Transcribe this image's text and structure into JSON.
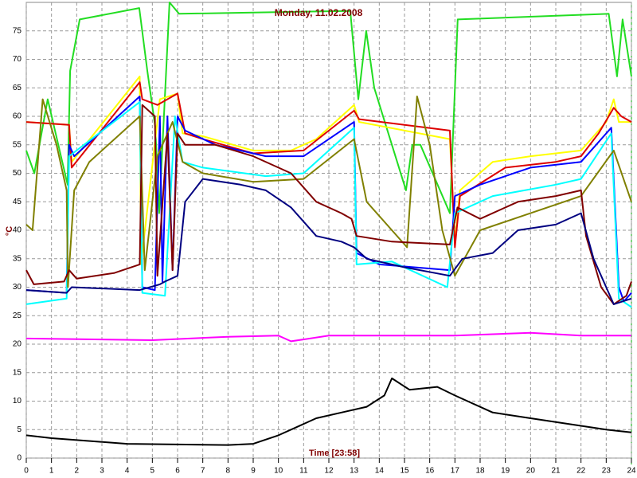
{
  "chart_data": {
    "type": "line",
    "title": "Monday, 11.02.2008",
    "x_label": "Time [23:58]",
    "y_label": "°C",
    "xlim": [
      0,
      24
    ],
    "xticks": [
      0,
      1,
      2,
      3,
      4,
      5,
      6,
      7,
      8,
      9,
      10,
      11,
      12,
      13,
      14,
      15,
      16,
      17,
      18,
      19,
      20,
      21,
      22,
      23,
      24
    ],
    "ylim": [
      0,
      80
    ],
    "yticks": [
      0,
      5,
      10,
      15,
      20,
      25,
      30,
      35,
      40,
      45,
      50,
      55,
      60,
      65,
      70,
      75
    ],
    "grid": true,
    "series": [
      {
        "color": "#22dd22",
        "x": [
          0,
          0.32,
          0.85,
          1.64,
          1.74,
          2.12,
          4.48,
          4.8,
          5.12,
          5.27,
          5.68,
          6.06,
          12.85,
          13.17,
          13.48,
          13.8,
          15.06,
          15.31,
          15.63,
          16.8,
          17.11,
          23.1,
          23.43,
          23.65,
          24
        ],
        "values": [
          54,
          50,
          63,
          48,
          68,
          77,
          79,
          68,
          58,
          43,
          80,
          78,
          78.5,
          63,
          75,
          65,
          47,
          55,
          55,
          43,
          77,
          78,
          67,
          77,
          67
        ]
      },
      {
        "color": "#ffff00",
        "x": [
          0,
          1.7,
          1.8,
          4.5,
          4.55,
          5.3,
          6,
          6.2,
          7,
          9,
          10.5,
          11.5,
          13,
          13.2,
          16.8,
          17,
          17.2,
          18.5,
          20,
          22,
          23,
          23.3,
          23.5,
          24
        ],
        "values": [
          59,
          58.5,
          52,
          67,
          34,
          63,
          64,
          57,
          56.5,
          54,
          54,
          56,
          62,
          59,
          56,
          38,
          47,
          52,
          53,
          54,
          59,
          63,
          59,
          59
        ]
      },
      {
        "color": "#dd0000",
        "x": [
          0,
          1.7,
          1.8,
          4.5,
          4.6,
          5.2,
          6,
          6.3,
          7,
          9,
          11,
          13,
          13.2,
          16.8,
          17,
          17.2,
          19,
          21,
          22,
          22.7,
          23.3,
          23.6,
          24
        ],
        "values": [
          59,
          58.5,
          51,
          66,
          63,
          62,
          64,
          57,
          56,
          53.5,
          54,
          61,
          59.5,
          57.5,
          37,
          46,
          51,
          52,
          53,
          57,
          61.5,
          60,
          59
        ]
      },
      {
        "color": "#0000ff",
        "x": [
          0,
          1.6,
          1.7,
          1.9,
          4.5,
          4.6,
          5.1,
          5.3,
          5.4,
          5.6,
          5.8,
          6,
          6.3,
          7.5,
          9.5,
          11,
          13,
          13.1,
          14,
          16.8,
          17,
          18,
          20,
          22,
          23.2,
          23.5,
          23.7,
          24
        ],
        "values": [
          29.5,
          29,
          55,
          53,
          63.5,
          30,
          29.5,
          60,
          31,
          60,
          33,
          60,
          57.5,
          55,
          53,
          53,
          59,
          36,
          34,
          33,
          46,
          48,
          51,
          52,
          58,
          30,
          27.5,
          29
        ]
      },
      {
        "color": "#00ffff",
        "x": [
          0,
          1.6,
          1.7,
          4.5,
          4.6,
          5.5,
          5.9,
          6.2,
          7,
          9.5,
          11,
          13,
          13.1,
          14.5,
          16.7,
          17,
          18.5,
          21,
          22,
          23.2,
          23.5,
          24
        ],
        "values": [
          27,
          28,
          53,
          62.5,
          29,
          28.5,
          60,
          52,
          51,
          49.5,
          50,
          58,
          34,
          34.5,
          30,
          43,
          46,
          48,
          49,
          57,
          28,
          26.5
        ]
      },
      {
        "color": "#808000",
        "x": [
          0,
          0.25,
          0.65,
          1.2,
          1.6,
          1.65,
          1.9,
          2.5,
          4.5,
          4.7,
          5.2,
          5.8,
          6.2,
          7,
          9,
          11,
          13,
          13.5,
          14.5,
          15.1,
          15.5,
          16,
          16.5,
          17,
          18,
          20,
          22,
          23.3,
          24
        ],
        "values": [
          41,
          40,
          63,
          55,
          47,
          30,
          47,
          52,
          60,
          33,
          53,
          59,
          52,
          50,
          48.5,
          49,
          56,
          45,
          40,
          37,
          63.5,
          55,
          40,
          32,
          40,
          43,
          46,
          54,
          45
        ]
      },
      {
        "color": "#800000",
        "x": [
          0,
          0.3,
          1.5,
          1.7,
          2,
          3.5,
          4.5,
          4.6,
          5.1,
          5.2,
          5.6,
          5.8,
          6,
          6.3,
          7.5,
          9,
          10.5,
          11.5,
          12.5,
          12.9,
          13.1,
          14.5,
          16.8,
          17.1,
          18,
          19.5,
          21,
          22,
          22.2,
          22.8,
          23.3,
          23.8,
          24
        ],
        "values": [
          33,
          30.5,
          31,
          33,
          31.5,
          32.5,
          34,
          62,
          60,
          32,
          57,
          33,
          57,
          55,
          55,
          53,
          50,
          45,
          43,
          42,
          39,
          38,
          37.5,
          44,
          42,
          45,
          46,
          47,
          39,
          30,
          27,
          28.5,
          31
        ]
      },
      {
        "color": "#000080",
        "x": [
          0,
          1.6,
          1.8,
          4.5,
          5.3,
          5.5,
          6,
          6.3,
          7,
          8.5,
          9.5,
          10.5,
          11.5,
          12.5,
          13,
          13.5,
          15,
          16.8,
          17.3,
          18.5,
          19.5,
          21,
          22,
          22.5,
          23.3,
          24
        ],
        "values": [
          29.5,
          29,
          30,
          29.5,
          30.5,
          31,
          32,
          45,
          49,
          48,
          47,
          44,
          39,
          38,
          37,
          35,
          33.5,
          32,
          35,
          36,
          40,
          41,
          43,
          35,
          27,
          28
        ]
      },
      {
        "color": "#ff00ff",
        "x": [
          0,
          5,
          8,
          10,
          10.5,
          12,
          17,
          20,
          22,
          24
        ],
        "values": [
          21,
          20.7,
          21.3,
          21.5,
          20.5,
          21.5,
          21.5,
          22,
          21.5,
          21.5
        ]
      },
      {
        "color": "#000000",
        "x": [
          0,
          1,
          4,
          8,
          9,
          10,
          11.5,
          12.5,
          13.5,
          14.2,
          14.5,
          15.2,
          16.3,
          17,
          18.5,
          20,
          21.5,
          23,
          24
        ],
        "values": [
          4,
          3.5,
          2.5,
          2.3,
          2.5,
          4,
          7,
          8,
          9,
          11,
          14,
          12,
          12.5,
          11,
          8,
          7,
          6,
          5,
          4.5
        ]
      }
    ]
  }
}
